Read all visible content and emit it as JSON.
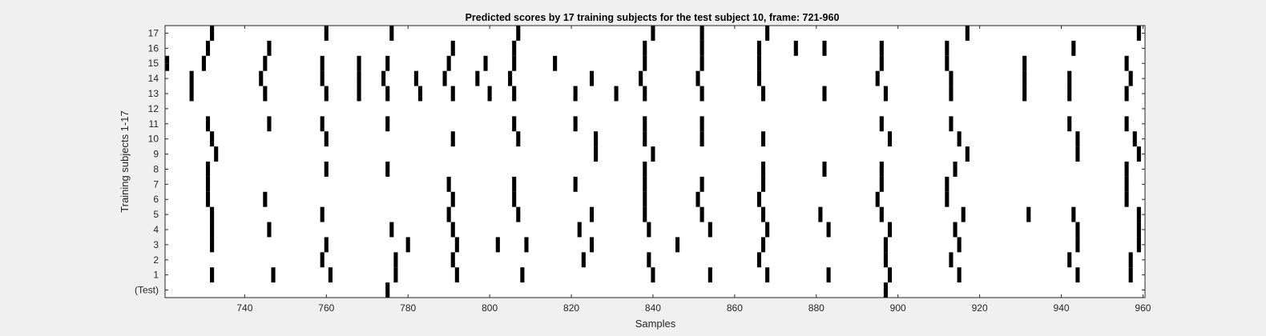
{
  "chart_data": {
    "type": "heatmap",
    "title": "Predicted scores by 17 training subjects for the test subject 10, frame: 721-960",
    "xlabel": "Samples",
    "ylabel": "Training subjects 1-17",
    "xlim": [
      721,
      960
    ],
    "x_ticks": [
      740,
      760,
      780,
      800,
      820,
      840,
      860,
      880,
      900,
      920,
      940,
      960
    ],
    "rows": [
      {
        "label": "(Test)",
        "marks": [
          775,
          897
        ]
      },
      {
        "label": "1",
        "marks": [
          732,
          747,
          761,
          777,
          792,
          808,
          840,
          854,
          868,
          883,
          898,
          915,
          944,
          957
        ]
      },
      {
        "label": "2",
        "marks": [
          759,
          777,
          791,
          823,
          839,
          866,
          897,
          913,
          942,
          957
        ]
      },
      {
        "label": "3",
        "marks": [
          732,
          760,
          780,
          792,
          802,
          809,
          825,
          846,
          867,
          897,
          915,
          944,
          959
        ]
      },
      {
        "label": "4",
        "marks": [
          732,
          746,
          776,
          791,
          822,
          839,
          854,
          868,
          883,
          898,
          914,
          944,
          959
        ]
      },
      {
        "label": "5",
        "marks": [
          732,
          759,
          790,
          807,
          825,
          838,
          852,
          867,
          881,
          896,
          916,
          932,
          943,
          959
        ]
      },
      {
        "label": "6",
        "marks": [
          731,
          745,
          791,
          806,
          838,
          851,
          866,
          895,
          912,
          956
        ]
      },
      {
        "label": "7",
        "marks": [
          731,
          790,
          806,
          821,
          838,
          852,
          867,
          896,
          912,
          956
        ]
      },
      {
        "label": "8",
        "marks": [
          731,
          760,
          775,
          838,
          867,
          882,
          896,
          914,
          956
        ]
      },
      {
        "label": "9",
        "marks": [
          733,
          826,
          840,
          917,
          944,
          959
        ]
      },
      {
        "label": "10",
        "marks": [
          732,
          760,
          791,
          807,
          826,
          838,
          852,
          867,
          898,
          915,
          944,
          958
        ]
      },
      {
        "label": "11",
        "marks": [
          731,
          746,
          759,
          775,
          806,
          821,
          838,
          852,
          896,
          913,
          942,
          956
        ]
      },
      {
        "label": "12",
        "marks": []
      },
      {
        "label": "13",
        "marks": [
          727,
          745,
          760,
          768,
          775,
          783,
          791,
          800,
          806,
          821,
          831,
          838,
          852,
          867,
          882,
          897,
          913,
          931,
          942,
          956
        ]
      },
      {
        "label": "14",
        "marks": [
          727,
          744,
          759,
          768,
          774,
          782,
          789,
          797,
          805,
          825,
          837,
          851,
          866,
          895,
          913,
          931,
          942,
          957
        ]
      },
      {
        "label": "15",
        "marks": [
          721,
          730,
          745,
          759,
          768,
          775,
          790,
          799,
          806,
          816,
          838,
          852,
          866,
          896,
          912,
          931,
          956
        ]
      },
      {
        "label": "16",
        "marks": [
          731,
          746,
          791,
          806,
          838,
          852,
          866,
          875,
          882,
          896,
          912,
          943
        ]
      },
      {
        "label": "17",
        "marks": [
          732,
          760,
          776,
          807,
          840,
          852,
          868,
          917,
          959
        ]
      }
    ]
  }
}
